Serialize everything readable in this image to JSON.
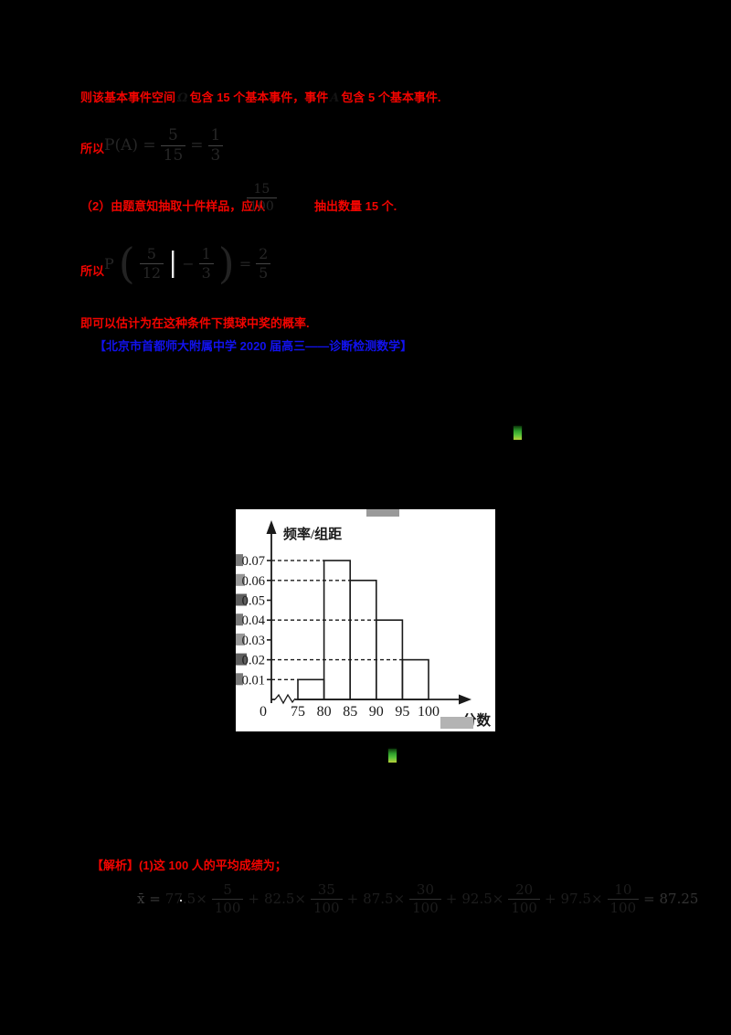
{
  "colors": {
    "background": "#000000",
    "red_text": "#f20400",
    "blue_text": "#1212ee",
    "formula_dim": "#262626",
    "panel_bg": "#ffffff",
    "chart_ink": "#1a1a1a",
    "speck_green": "#2f9e2c"
  },
  "solution": {
    "line1": {
      "seg1": "则该基本事件空间",
      "sym1": "Ω",
      "seg2": "包含 15 个基本事件，事件",
      "sym2": "A",
      "seg3": "包含 5 个基本事件."
    },
    "step1": {
      "label": "所以",
      "formula": {
        "lead": "P(A) =",
        "f1n": "5",
        "f1d": "15",
        "eq": "=",
        "f2n": "1",
        "f2d": "3"
      }
    },
    "line2": {
      "seg1": "（2）由题意知抽取十件样品，应从",
      "formula": {
        "n": "15",
        "d": "100"
      },
      "seg2": "抽出数量 15 个."
    },
    "step2": {
      "label": "所以",
      "formula": {
        "lead": "P",
        "open": "(",
        "f1n": "5",
        "f1d": "12",
        "bar": "|",
        "minus": "−",
        "f2n": "1",
        "f2d": "3",
        "close": ")",
        "eq": "=",
        "f3n": "2",
        "f3d": "5"
      }
    },
    "line3": "即可以估计为在这种条件下摸球中奖的概率.",
    "source": "【北京市首都师大附属中学 2020 届高三——诊断检测数学】"
  },
  "analysis": {
    "heading": "【解析】(1)这 100 人的平均成绩为；",
    "formula": {
      "lead": "x̄ =",
      "t1c": "77.5×",
      "t1n": "5",
      "t1d": "100",
      "p1": "+",
      "t2c": "82.5×",
      "t2n": "35",
      "t2d": "100",
      "p2": "+",
      "t3c": "87.5×",
      "t3n": "30",
      "t3d": "100",
      "p3": "+",
      "t4c": "92.5×",
      "t4n": "20",
      "t4d": "100",
      "p4": "+",
      "t5c": "97.5×",
      "t5n": "10",
      "t5d": "100",
      "result": "= 87.25"
    }
  },
  "chart_data": {
    "type": "bar",
    "title": "",
    "ylabel": "频率/组距",
    "xlabel": "分数",
    "categories": [
      "[75,80)",
      "[80,85)",
      "[85,90)",
      "[90,95)",
      "[95,100]"
    ],
    "bins": [
      [
        75,
        80
      ],
      [
        80,
        85
      ],
      [
        85,
        90
      ],
      [
        90,
        95
      ],
      [
        95,
        100
      ]
    ],
    "values": [
      0.01,
      0.07,
      0.06,
      0.04,
      0.02
    ],
    "yticks": [
      0.01,
      0.02,
      0.03,
      0.04,
      0.05,
      0.06,
      0.07
    ],
    "xticks": [
      0,
      75,
      80,
      85,
      90,
      95,
      100
    ],
    "ylim": [
      0,
      0.08
    ],
    "grid": "dashed-horizontal-to-bar-top",
    "legend": "none",
    "axis_break_before_first_bin": true
  }
}
